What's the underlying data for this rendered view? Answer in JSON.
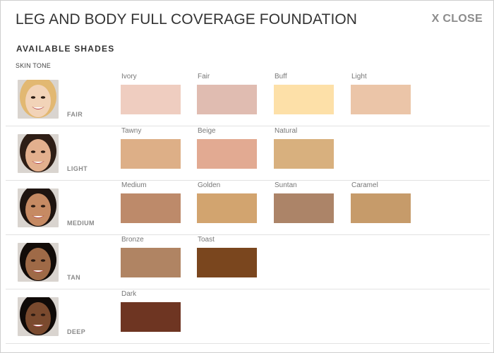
{
  "modal": {
    "title": "LEG AND BODY FULL COVERAGE FOUNDATION",
    "close_label": "X CLOSE",
    "section_title": "AVAILABLE SHADES",
    "skin_tone_label": "SKIN TONE"
  },
  "rows": [
    {
      "tone": "FAIR",
      "skin": "#f2d3b8",
      "hair": "#e2b872",
      "shades": [
        {
          "name": "Ivory",
          "color": "#efcdc0"
        },
        {
          "name": "Fair",
          "color": "#e0bcb1"
        },
        {
          "name": "Buff",
          "color": "#fde0a8"
        },
        {
          "name": "Light",
          "color": "#ebc5a8"
        }
      ]
    },
    {
      "tone": "LIGHT",
      "skin": "#e3b08e",
      "hair": "#2e1e16",
      "shades": [
        {
          "name": "Tawny",
          "color": "#ddaf87"
        },
        {
          "name": "Beige",
          "color": "#e2aa92"
        },
        {
          "name": "Natural",
          "color": "#d8b07e"
        }
      ]
    },
    {
      "tone": "MEDIUM",
      "skin": "#c68a63",
      "hair": "#1e1410",
      "shades": [
        {
          "name": "Medium",
          "color": "#bd8a6a"
        },
        {
          "name": "Golden",
          "color": "#d2a46f"
        },
        {
          "name": "Suntan",
          "color": "#ac8468"
        },
        {
          "name": "Caramel",
          "color": "#c69b6a"
        }
      ]
    },
    {
      "tone": "TAN",
      "skin": "#9f6a47",
      "hair": "#120c09",
      "shades": [
        {
          "name": "Bronze",
          "color": "#b08463"
        },
        {
          "name": "Toast",
          "color": "#7a461e"
        }
      ]
    },
    {
      "tone": "DEEP",
      "skin": "#7a4a2e",
      "hair": "#0f0a08",
      "shades": [
        {
          "name": "Dark",
          "color": "#6e3522"
        }
      ]
    }
  ]
}
